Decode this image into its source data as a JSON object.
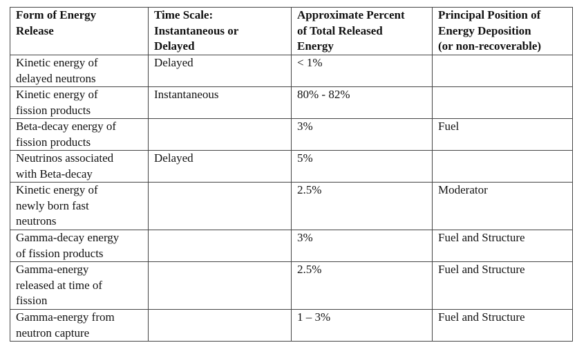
{
  "table": {
    "header": [
      "Form of Energy\nRelease",
      "Time Scale:\nInstantaneous or\nDelayed",
      "Approximate Percent\nof Total Released\nEnergy",
      "Principal Position of\nEnergy Deposition\n(or non-recoverable)"
    ],
    "rows": [
      [
        "Kinetic energy of\ndelayed neutrons",
        "Delayed",
        "< 1%",
        null
      ],
      [
        "Kinetic energy of\nfission products",
        "Instantaneous",
        "80% - 82%",
        null
      ],
      [
        "Beta-decay energy of\nfission products",
        null,
        "3%",
        "Fuel"
      ],
      [
        "Neutrinos associated\nwith Beta-decay",
        "Delayed",
        "5%",
        null
      ],
      [
        "Kinetic energy of\nnewly born fast\nneutrons",
        null,
        "2.5%",
        "Moderator"
      ],
      [
        "Gamma-decay energy\nof fission products",
        null,
        "3%",
        "Fuel and Structure"
      ],
      [
        "Gamma-energy\nreleased at time of\nfission",
        null,
        "2.5%",
        "Fuel and Structure"
      ],
      [
        "Gamma-energy from\nneutron capture",
        null,
        "1 – 3%",
        "Fuel and Structure"
      ]
    ]
  }
}
